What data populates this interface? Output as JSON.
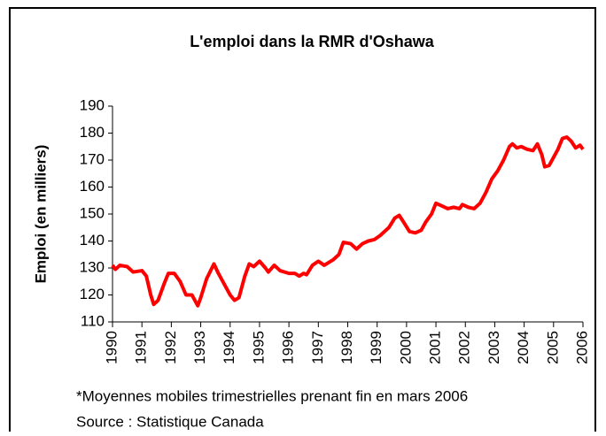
{
  "chart_data": {
    "type": "line",
    "title": "L'emploi dans la RMR d'Oshawa",
    "y_label": "Emploi (en milliers)",
    "notes": [
      "*Moyennes mobiles trimestrielles prenant fin en mars 2006",
      "Source : Statistique Canada"
    ],
    "x": [
      1990.0,
      1990.1,
      1990.25,
      1990.5,
      1990.7,
      1991.0,
      1991.15,
      1991.3,
      1991.4,
      1991.55,
      1991.75,
      1991.9,
      1992.1,
      1992.3,
      1992.5,
      1992.7,
      1992.8,
      1992.9,
      1993.0,
      1993.2,
      1993.45,
      1993.6,
      1993.8,
      1994.0,
      1994.15,
      1994.3,
      1994.5,
      1994.65,
      1994.8,
      1995.0,
      1995.2,
      1995.3,
      1995.5,
      1995.7,
      1996.0,
      1996.2,
      1996.35,
      1996.5,
      1996.6,
      1996.8,
      1997.0,
      1997.2,
      1997.5,
      1997.7,
      1997.85,
      1998.1,
      1998.3,
      1998.5,
      1998.7,
      1998.9,
      1999.1,
      1999.4,
      1999.6,
      1999.75,
      1999.9,
      2000.1,
      2000.3,
      2000.5,
      2000.65,
      2000.85,
      2001.0,
      2001.2,
      2001.4,
      2001.6,
      2001.8,
      2001.9,
      2002.1,
      2002.3,
      2002.5,
      2002.7,
      2002.9,
      2003.1,
      2003.3,
      2003.5,
      2003.6,
      2003.75,
      2003.9,
      2004.1,
      2004.3,
      2004.45,
      2004.6,
      2004.7,
      2004.85,
      2005.0,
      2005.15,
      2005.3,
      2005.45,
      2005.6,
      2005.75,
      2005.9,
      2006.0
    ],
    "series": [
      {
        "name": "Emploi",
        "color": "#ff0000",
        "values": [
          131,
          129.5,
          131,
          130.5,
          128.5,
          129,
          127,
          120,
          116.5,
          118,
          124,
          128,
          128,
          125,
          120,
          120,
          118,
          116,
          119,
          126,
          131.5,
          128,
          124,
          120,
          118,
          119,
          127,
          131.5,
          130.5,
          132.5,
          130,
          128.5,
          131,
          129,
          128,
          128,
          127,
          128,
          127.5,
          131,
          132.5,
          131,
          133,
          135,
          139.5,
          139,
          137,
          139,
          140,
          140.5,
          142,
          145,
          148.5,
          149.5,
          147,
          143.5,
          143,
          144,
          147,
          150,
          154,
          153,
          152,
          152.5,
          152,
          153.5,
          152.5,
          152,
          154,
          158,
          163,
          166,
          170,
          175,
          176,
          174.5,
          175,
          174,
          173.5,
          176,
          172,
          167.5,
          168,
          171,
          174,
          178,
          178.5,
          177,
          174.5,
          175.5,
          174
        ]
      }
    ],
    "xlim": [
      1990,
      2006
    ],
    "xticks": [
      1990,
      1991,
      1992,
      1993,
      1994,
      1995,
      1996,
      1997,
      1998,
      1999,
      2000,
      2001,
      2002,
      2003,
      2004,
      2005,
      2006
    ],
    "ylim": [
      110,
      190
    ],
    "yticks": [
      110,
      120,
      130,
      140,
      150,
      160,
      170,
      180,
      190
    ]
  }
}
